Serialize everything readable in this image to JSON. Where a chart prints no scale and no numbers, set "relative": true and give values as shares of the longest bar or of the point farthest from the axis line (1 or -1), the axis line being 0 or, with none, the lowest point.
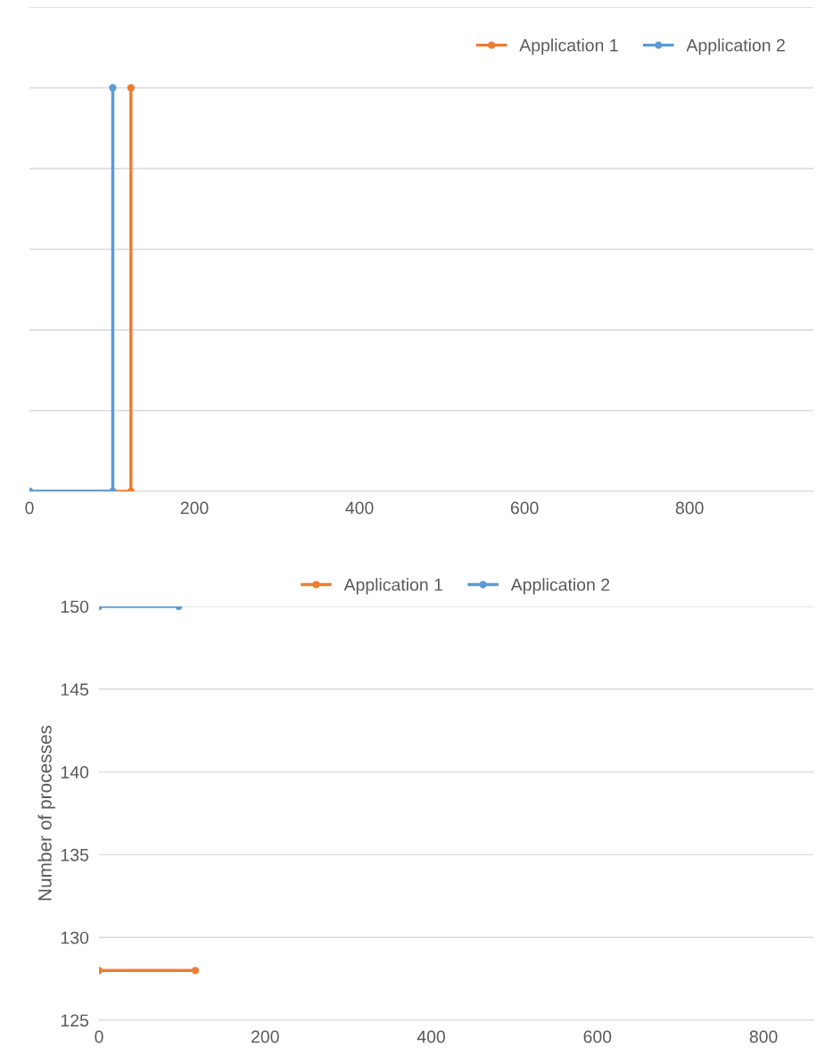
{
  "chart_data": [
    {
      "type": "line",
      "relative": true,
      "xlim": [
        0,
        950
      ],
      "xticks": [
        0,
        200,
        400,
        600,
        800
      ],
      "tick_labels": "x",
      "grid": "y",
      "legend": "top right",
      "marker": "circle",
      "line_style": "solid",
      "series": [
        {
          "name": "Application 1",
          "color": "#ed7d31",
          "x": [
            0,
            123,
            123
          ],
          "values": [
            0,
            0,
            1
          ]
        },
        {
          "name": "Application 2",
          "color": "#5b9bd5",
          "x": [
            0,
            101,
            101
          ],
          "values": [
            0,
            0,
            1
          ]
        }
      ]
    },
    {
      "type": "line",
      "ylabel": "Number of processes",
      "xlim": [
        0,
        860
      ],
      "xticks": [
        0,
        200,
        400,
        600,
        800
      ],
      "ylim": [
        125,
        150
      ],
      "yticks": [
        125,
        130,
        135,
        140,
        145,
        150
      ],
      "grid": "y",
      "legend": "top",
      "marker": "circle",
      "line_style": "solid",
      "series": [
        {
          "name": "Application 1",
          "color": "#ed7d31",
          "x": [
            0,
            116
          ],
          "values": [
            128,
            128
          ]
        },
        {
          "name": "Application 2",
          "color": "#5b9bd5",
          "x": [
            0,
            96
          ],
          "values": [
            150,
            150
          ]
        }
      ]
    }
  ]
}
